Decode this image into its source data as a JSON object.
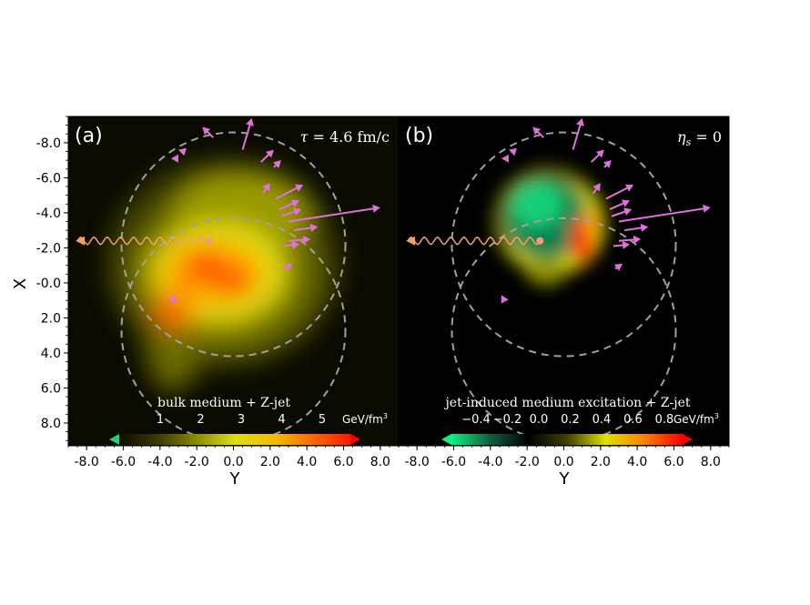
{
  "figure": {
    "axis": {
      "xlabel": "Y",
      "ylabel": "X",
      "xlim": [
        -9.0,
        9.0
      ],
      "ylim": [
        9.3,
        -9.5
      ],
      "x_ticks": [
        "-8.0",
        "-6.0",
        "-4.0",
        "-2.0",
        "0.0",
        "2.0",
        "4.0",
        "6.0",
        "8.0"
      ],
      "y_ticks": [
        "-8.0",
        "-6.0",
        "-4.0",
        "-2.0",
        "-0.0",
        "2.0",
        "4.0",
        "6.0",
        "8.0"
      ]
    },
    "panels": [
      {
        "id": "a",
        "panel_label": "(a)",
        "corner_text_prefix": "τ",
        "corner_text_suffix": " = 4.6 fm/c",
        "colorbar_title": "bulk medium + Z-jet",
        "colorbar_ticks": [
          "1",
          "2",
          "3",
          "4",
          "5"
        ],
        "colorbar_unit": "GeV/fm",
        "colorbar_unit_sup": "3",
        "colormap": [
          "#0d0d00",
          "#3a3a00",
          "#8a8a00",
          "#dede10",
          "#f0c000",
          "#ff6a00",
          "#ff1a00"
        ]
      },
      {
        "id": "b",
        "panel_label": "(b)",
        "corner_text_prefix": "η",
        "corner_text_sub": "s",
        "corner_text_suffix": " = 0",
        "colorbar_title": "jet-induced medium excitation + Z-jet",
        "colorbar_ticks": [
          "−0.4",
          "−0.2",
          "0.0",
          "0.2",
          "0.4",
          "0.6",
          "0.8"
        ],
        "colorbar_unit": "GeV/fm",
        "colorbar_unit_sup": "3",
        "colormap": [
          "#10f080",
          "#106040",
          "#000000",
          "#404000",
          "#e0e000",
          "#ff8000",
          "#ff0000"
        ]
      }
    ],
    "colors": {
      "background": "#000000",
      "circle": "#a0a0a0",
      "arrow": "#e070e0",
      "z_boson": "#f0a070"
    }
  },
  "chart_data": {
    "type": "heatmap",
    "xlabel": "Y",
    "ylabel": "X",
    "xlim": [
      -9.0,
      9.0
    ],
    "ylim": [
      9.3,
      -9.5
    ],
    "circles": [
      {
        "center": [
          0,
          -2.2
        ],
        "radius": 6.1
      },
      {
        "center": [
          0,
          2.7
        ],
        "radius": 6.1
      }
    ],
    "z_boson": {
      "start": [
        -1.3,
        -2.4
      ],
      "end": [
        -8.5,
        -2.4
      ]
    },
    "jet_arrows": [
      {
        "from": [
          0.5,
          -7.6
        ],
        "to": [
          1.0,
          -9.4
        ]
      },
      {
        "from": [
          -1.1,
          -8.3
        ],
        "to": [
          -1.7,
          -8.9
        ]
      },
      {
        "from": [
          -2.7,
          -7.5
        ],
        "to": [
          -3.0,
          -7.6
        ]
      },
      {
        "from": [
          -3.1,
          -7.1
        ],
        "to": [
          -3.4,
          -7.1
        ]
      },
      {
        "from": [
          1.5,
          -6.9
        ],
        "to": [
          2.2,
          -7.6
        ]
      },
      {
        "from": [
          2.2,
          -6.6
        ],
        "to": [
          2.6,
          -7.0
        ]
      },
      {
        "from": [
          1.6,
          -5.1
        ],
        "to": [
          2.0,
          -5.7
        ]
      },
      {
        "from": [
          2.3,
          -4.8
        ],
        "to": [
          3.8,
          -5.6
        ]
      },
      {
        "from": [
          2.5,
          -4.2
        ],
        "to": [
          3.6,
          -4.7
        ]
      },
      {
        "from": [
          2.6,
          -3.8
        ],
        "to": [
          3.7,
          -4.2
        ]
      },
      {
        "from": [
          3.0,
          -3.5
        ],
        "to": [
          8.0,
          -4.3
        ]
      },
      {
        "from": [
          3.3,
          -3.0
        ],
        "to": [
          4.6,
          -3.2
        ]
      },
      {
        "from": [
          3.0,
          -2.4
        ],
        "to": [
          4.2,
          -2.5
        ]
      },
      {
        "from": [
          2.7,
          -2.1
        ],
        "to": [
          3.6,
          -2.2
        ]
      },
      {
        "from": [
          2.8,
          -0.8
        ],
        "to": [
          3.2,
          -1.1
        ]
      },
      {
        "from": [
          -3.3,
          0.9
        ],
        "to": [
          -3.4,
          0.7
        ]
      }
    ],
    "panels": [
      {
        "panel": "a",
        "quantity": "bulk medium + Z-jet",
        "colorbar_range": [
          0,
          5.6
        ],
        "features": [
          {
            "center": [
              -1.5,
              -1.1
            ],
            "value": 5.4
          },
          {
            "center": [
              0.2,
              -0.4
            ],
            "value": 5.2
          },
          {
            "center": [
              -3.5,
              1.7
            ],
            "value": 5.0
          },
          {
            "center": [
              -0.5,
              -1.5
            ],
            "value": 4.0
          },
          {
            "center": [
              0.5,
              -2.3
            ],
            "value": 2.5
          },
          {
            "center": [
              -3.5,
              4.0
            ],
            "value": 1.5
          }
        ]
      },
      {
        "panel": "b",
        "quantity": "jet-induced medium excitation + Z-jet",
        "colorbar_range": [
          -0.5,
          0.9
        ],
        "features": [
          {
            "center": [
              -2.0,
              -4.3
            ],
            "value": -0.45
          },
          {
            "center": [
              -1.0,
              -2.5
            ],
            "value": -0.35
          },
          {
            "center": [
              2.0,
              -1.6
            ],
            "value": 0.9
          },
          {
            "center": [
              2.6,
              -3.3
            ],
            "value": 0.5
          },
          {
            "center": [
              -0.8,
              1.4
            ],
            "value": 0.3
          }
        ]
      }
    ]
  }
}
